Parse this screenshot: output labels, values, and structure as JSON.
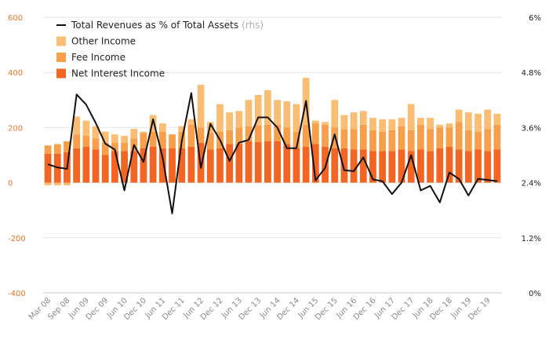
{
  "chart_data": {
    "type": "bar",
    "title": "",
    "xlabel": "",
    "ylabel": "",
    "ylim": [
      -400,
      600
    ],
    "y_ticks": [
      "600",
      "400",
      "200",
      "0",
      "-200",
      "-400"
    ],
    "y_tick_values": [
      600,
      400,
      200,
      0,
      -200,
      -400
    ],
    "y2lim": [
      0,
      6
    ],
    "y2_ticks": [
      "6%",
      "4.8%",
      "3.6%",
      "2.4%",
      "1.2%",
      "0%"
    ],
    "y2_tick_values": [
      6,
      4.8,
      3.6,
      2.4,
      1.2,
      0
    ],
    "gridlines": true,
    "x_tick_labels": [
      "Mar 08",
      "Sep 08",
      "Jun 09",
      "Dec 09",
      "Jun 10",
      "Dec 10",
      "Jun 11",
      "Dec 11",
      "Jun 12",
      "Dec 12",
      "Jun 13",
      "Dec 13",
      "Jun 14",
      "Dec 14",
      "Jun 15",
      "Dec 15",
      "Jun 16",
      "Dec 16",
      "Jun 17",
      "Dec 17",
      "Jun 18",
      "Dec 18",
      "Jun 19",
      "Dec 19"
    ],
    "x_tick_positions": [
      0,
      2,
      4,
      6,
      8,
      10,
      12,
      14,
      16,
      18,
      20,
      22,
      24,
      26,
      28,
      30,
      32,
      34,
      36,
      38,
      40,
      42,
      44,
      46
    ],
    "period_count": 48,
    "legend_position": "top-left",
    "legend": [
      {
        "label": "Total Revenues as % of Total Assets",
        "note": "(rhs)",
        "kind": "line",
        "color": "#111111"
      },
      {
        "label": "Other Income",
        "kind": "bar",
        "color": "#f9be73"
      },
      {
        "label": "Fee Income",
        "kind": "bar",
        "color": "#f79f4a"
      },
      {
        "label": "Net Interest Income",
        "kind": "bar",
        "color": "#f26522"
      }
    ],
    "series": [
      {
        "name": "Net Interest Income",
        "axis": "left",
        "color": "#f26522",
        "values": [
          105,
          105,
          110,
          125,
          130,
          120,
          100,
          115,
          115,
          115,
          125,
          130,
          125,
          125,
          125,
          130,
          145,
          120,
          125,
          140,
          140,
          150,
          148,
          150,
          150,
          140,
          125,
          130,
          140,
          130,
          125,
          125,
          120,
          120,
          115,
          115,
          115,
          120,
          115,
          120,
          115,
          125,
          130,
          120,
          115,
          120,
          115,
          120
        ]
      },
      {
        "name": "Fee Income",
        "axis": "left",
        "color": "#f79f4a",
        "values": [
          30,
          35,
          40,
          50,
          40,
          40,
          45,
          30,
          30,
          45,
          55,
          55,
          60,
          50,
          60,
          80,
          55,
          60,
          60,
          50,
          60,
          55,
          60,
          60,
          60,
          60,
          60,
          80,
          75,
          80,
          75,
          70,
          75,
          90,
          75,
          70,
          75,
          85,
          75,
          90,
          80,
          75,
          70,
          100,
          75,
          65,
          80,
          90
        ]
      },
      {
        "name": "Other Income",
        "axis": "left",
        "color": "#f9be73",
        "values": [
          -10,
          -10,
          -10,
          65,
          55,
          45,
          40,
          30,
          25,
          35,
          5,
          60,
          30,
          0,
          20,
          20,
          155,
          40,
          100,
          65,
          60,
          95,
          110,
          125,
          90,
          95,
          100,
          170,
          10,
          10,
          100,
          50,
          60,
          50,
          45,
          45,
          40,
          30,
          95,
          25,
          40,
          10,
          15,
          45,
          65,
          65,
          70,
          40
        ]
      },
      {
        "name": "Total Revenues as % of Total Assets",
        "axis": "right",
        "color": "#111111",
        "values": [
          2.8,
          2.73,
          2.7,
          4.32,
          4.1,
          3.7,
          3.25,
          3.12,
          2.23,
          3.22,
          2.85,
          3.78,
          2.95,
          1.73,
          3.3,
          4.35,
          2.72,
          3.68,
          3.33,
          2.87,
          3.27,
          3.33,
          3.82,
          3.82,
          3.6,
          3.15,
          3.15,
          4.18,
          2.45,
          2.72,
          3.45,
          2.67,
          2.65,
          2.95,
          2.47,
          2.43,
          2.15,
          2.4,
          3.0,
          2.23,
          2.33,
          1.97,
          2.62,
          2.48,
          2.12,
          2.48,
          2.46,
          2.43
        ]
      }
    ]
  }
}
